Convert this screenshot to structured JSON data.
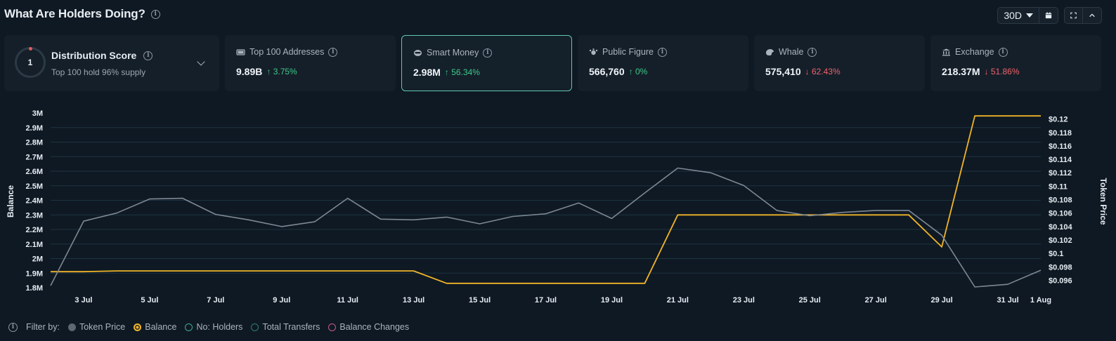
{
  "header": {
    "title": "What Are Holders Doing?",
    "period": "30D"
  },
  "distribution": {
    "score": "1",
    "title": "Distribution Score",
    "subtitle": "Top 100 hold 96% supply"
  },
  "cards": [
    {
      "label": "Top 100 Addresses",
      "icon": "wallet-icon",
      "value": "9.89B",
      "change": "↑ 3.75%",
      "direction": "up"
    },
    {
      "label": "Smart Money",
      "icon": "smart-money-icon",
      "value": "2.98M",
      "change": "↑ 56.34%",
      "direction": "up"
    },
    {
      "label": "Public Figure",
      "icon": "public-figure-icon",
      "value": "566,760",
      "change": "↑ 0%",
      "direction": "up"
    },
    {
      "label": "Whale",
      "icon": "whale-icon",
      "value": "575,410",
      "change": "↓ 62.43%",
      "direction": "down"
    },
    {
      "label": "Exchange",
      "icon": "exchange-icon",
      "value": "218.37M",
      "change": "↓ 51.86%",
      "direction": "down"
    }
  ],
  "legend": {
    "filter_label": "Filter by:",
    "items": [
      {
        "label": "Token Price",
        "color": "#5d6873",
        "filled": true
      },
      {
        "label": "Balance",
        "color": "#f0b429",
        "filled": false
      },
      {
        "label": "No: Holders",
        "color": "#3aa89a",
        "filled": false
      },
      {
        "label": "Total Transfers",
        "color": "#2d7d72",
        "filled": false
      },
      {
        "label": "Balance Changes",
        "color": "#c45a8a",
        "filled": false
      }
    ]
  },
  "colors": {
    "balance": "#f0b429",
    "price": "#7d8894",
    "grid": "#1c3442",
    "active_border": "#62c7b4"
  },
  "chart_data": {
    "type": "line",
    "ylabel": "Balance",
    "y2label": "Token Price",
    "left_ticks": [
      "3M",
      "2.9M",
      "2.8M",
      "2.7M",
      "2.6M",
      "2.5M",
      "2.4M",
      "2.3M",
      "2.2M",
      "2.1M",
      "2M",
      "1.9M",
      "1.8M"
    ],
    "right_ticks": [
      "$0.12",
      "$0.118",
      "$0.116",
      "$0.114",
      "$0.112",
      "$0.11",
      "$0.108",
      "$0.106",
      "$0.104",
      "$0.102",
      "$0.1",
      "$0.098",
      "$0.096"
    ],
    "x_ticks": [
      "3 Jul",
      "5 Jul",
      "7 Jul",
      "9 Jul",
      "11 Jul",
      "13 Jul",
      "15 Jul",
      "17 Jul",
      "19 Jul",
      "21 Jul",
      "23 Jul",
      "25 Jul",
      "27 Jul",
      "29 Jul",
      "31 Jul",
      "1 Aug"
    ],
    "ylim": [
      1.8,
      3.0
    ],
    "y2lim": [
      0.0949,
      0.1209
    ],
    "x": [
      "2 Jul",
      "3 Jul",
      "4 Jul",
      "5 Jul",
      "6 Jul",
      "7 Jul",
      "8 Jul",
      "9 Jul",
      "10 Jul",
      "11 Jul",
      "12 Jul",
      "13 Jul",
      "14 Jul",
      "15 Jul",
      "16 Jul",
      "17 Jul",
      "18 Jul",
      "19 Jul",
      "20 Jul",
      "21 Jul",
      "22 Jul",
      "23 Jul",
      "24 Jul",
      "25 Jul",
      "26 Jul",
      "27 Jul",
      "28 Jul",
      "29 Jul",
      "30 Jul",
      "31 Jul",
      "1 Aug"
    ],
    "series": [
      {
        "name": "Balance",
        "axis": "left",
        "values": [
          1.91,
          1.91,
          1.915,
          1.915,
          1.915,
          1.915,
          1.915,
          1.915,
          1.915,
          1.915,
          1.915,
          1.915,
          1.83,
          1.83,
          1.83,
          1.83,
          1.83,
          1.83,
          1.83,
          2.3,
          2.3,
          2.3,
          2.3,
          2.3,
          2.3,
          2.3,
          2.3,
          2.08,
          2.98,
          2.98,
          2.98
        ]
      },
      {
        "name": "Token Price",
        "axis": "right",
        "values": [
          0.0952,
          0.1048,
          0.106,
          0.1081,
          0.1082,
          0.1058,
          0.105,
          0.104,
          0.1047,
          0.1082,
          0.1051,
          0.105,
          0.1054,
          0.1044,
          0.1055,
          0.1059,
          0.1075,
          0.1052,
          0.109,
          0.1127,
          0.112,
          0.1101,
          0.1064,
          0.1056,
          0.1061,
          0.1064,
          0.1064,
          0.1027,
          0.095,
          0.0954,
          0.0975
        ]
      }
    ]
  }
}
